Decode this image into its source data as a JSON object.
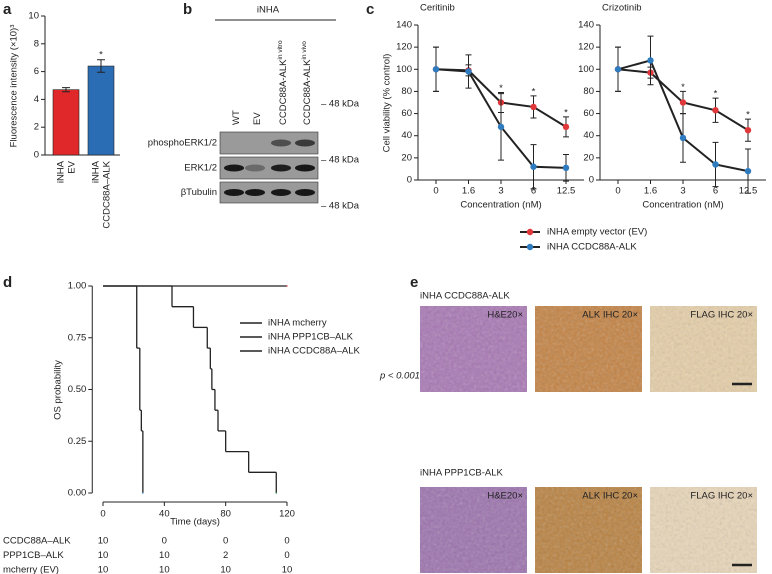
{
  "panels": [
    "a",
    "b",
    "c",
    "d",
    "e"
  ],
  "chart_data": [
    {
      "type": "bar",
      "ylabel": "Fluorescence intensity (×10)³",
      "categories": [
        [
          "iNHA",
          "EV"
        ],
        [
          "iNHA",
          "CCDC88A–ALK"
        ]
      ],
      "values": [
        4.7,
        6.4
      ],
      "errors": [
        0.15,
        0.45
      ],
      "colors": [
        "#e0282a",
        "#2a6db5"
      ],
      "ylim": [
        0,
        10
      ],
      "yticks": [
        0,
        2,
        4,
        6,
        8,
        10
      ],
      "annotations": [
        {
          "category": 1,
          "text": "*"
        }
      ]
    },
    {
      "type": "line",
      "title": "Ceritinib",
      "xlabel": "Concentration (nM)",
      "ylabel": "Cell viability (% control)",
      "categories": [
        "0",
        "1.6",
        "3",
        "6",
        "12.5"
      ],
      "ylim": [
        0,
        140
      ],
      "yticks": [
        0,
        20,
        40,
        60,
        80,
        100,
        120,
        140
      ],
      "series": [
        {
          "name": "iNHA empty vector (EV)",
          "color": "#e0383a",
          "values": [
            100,
            99,
            70,
            66,
            48
          ],
          "errors": [
            20,
            5,
            9,
            10,
            9
          ]
        },
        {
          "name": "iNHA CCDC88A-ALK",
          "color": "#2f7bbf",
          "values": [
            100,
            98,
            48,
            12,
            11
          ],
          "errors": [
            20,
            15,
            30,
            20,
            12
          ]
        }
      ],
      "annotations": [
        {
          "category": 2,
          "text": "*"
        },
        {
          "category": 3,
          "text": "*"
        },
        {
          "category": 4,
          "text": "*"
        }
      ]
    },
    {
      "type": "line",
      "title": "Crizotinib",
      "xlabel": "Concentration (nM)",
      "categories": [
        "0",
        "1.6",
        "3",
        "6",
        "12.5"
      ],
      "ylim": [
        0,
        140
      ],
      "yticks": [
        0,
        20,
        40,
        60,
        80,
        100,
        120,
        140
      ],
      "series": [
        {
          "color": "#e0383a",
          "values": [
            100,
            97,
            70,
            63,
            45
          ],
          "errors": [
            20,
            5,
            10,
            11,
            10
          ]
        },
        {
          "color": "#2f7bbf",
          "values": [
            100,
            108,
            38,
            14,
            8
          ],
          "errors": [
            20,
            22,
            22,
            20,
            20
          ]
        }
      ],
      "annotations": [
        {
          "category": 2,
          "text": "*"
        },
        {
          "category": 3,
          "text": "*"
        },
        {
          "category": 4,
          "text": "*"
        }
      ]
    },
    {
      "type": "step",
      "xlabel": "Time (days)",
      "ylabel": "OS probability",
      "annotation": "p < 0.001",
      "xlim": [
        -7,
        125
      ],
      "xticks": [
        0,
        40,
        80,
        120
      ],
      "ylim": [
        0,
        1
      ],
      "yticks": [
        {
          "value": 0,
          "label": "0.00"
        },
        {
          "value": 0.25,
          "label": "0.25"
        },
        {
          "value": 0.5,
          "label": "0.50"
        },
        {
          "value": 0.75,
          "label": "0.75"
        },
        {
          "value": 1,
          "label": "1.00"
        }
      ],
      "series": [
        {
          "name": "iNHA mcherry",
          "color": "#e0383a",
          "x": [
            0,
            120
          ],
          "values": [
            1,
            1
          ]
        },
        {
          "name": "iNHA PPP1CB–ALK",
          "color": "#1f9a48",
          "x": [
            0,
            45,
            59,
            68,
            70,
            71,
            73,
            75,
            80,
            95,
            113
          ],
          "values": [
            1,
            0.9,
            0.8,
            0.7,
            0.6,
            0.5,
            0.4,
            0.3,
            0.2,
            0.1,
            0
          ]
        },
        {
          "name": "iNHA CCDC88A–ALK",
          "color": "#2f7bbf",
          "x": [
            0,
            22,
            24,
            25,
            26
          ],
          "values": [
            1,
            0.7,
            0.4,
            0.3,
            0
          ]
        }
      ],
      "risk_table": [
        {
          "name": "CCDC88A–ALK",
          "color": "#2f7bbf",
          "values": [
            10,
            0,
            0,
            0
          ]
        },
        {
          "name": "PPP1CB–ALK",
          "color": "#1f9a48",
          "values": [
            10,
            10,
            2,
            0
          ]
        },
        {
          "name": "mcherry (EV)",
          "color": "#e0383a",
          "values": [
            10,
            10,
            10,
            10
          ]
        }
      ]
    }
  ],
  "blot": {
    "header": "iNHA",
    "lanes": [
      {
        "name": "WT"
      },
      {
        "name": "EV"
      },
      {
        "name": "CCDC88A-ALK",
        "sup": "in vitro"
      },
      {
        "name": "CCDC88A-ALK",
        "sup": "in vivo"
      }
    ],
    "rows": [
      "phosphoERK1/2",
      "ERK1/2",
      "βTubulin"
    ],
    "markers": [
      "– 48 kDa",
      "– 48 kDa",
      "– 48 kDa"
    ]
  },
  "histology": {
    "rows": [
      {
        "label": "iNHA CCDC88A-ALK",
        "images": [
          "H&E20×",
          "ALK IHC 20×",
          "FLAG IHC 20×"
        ]
      },
      {
        "label": "iNHA PPP1CB-ALK",
        "images": [
          "H&E20×",
          "ALK IHC 20×",
          "FLAG IHC 20×"
        ]
      }
    ]
  }
}
